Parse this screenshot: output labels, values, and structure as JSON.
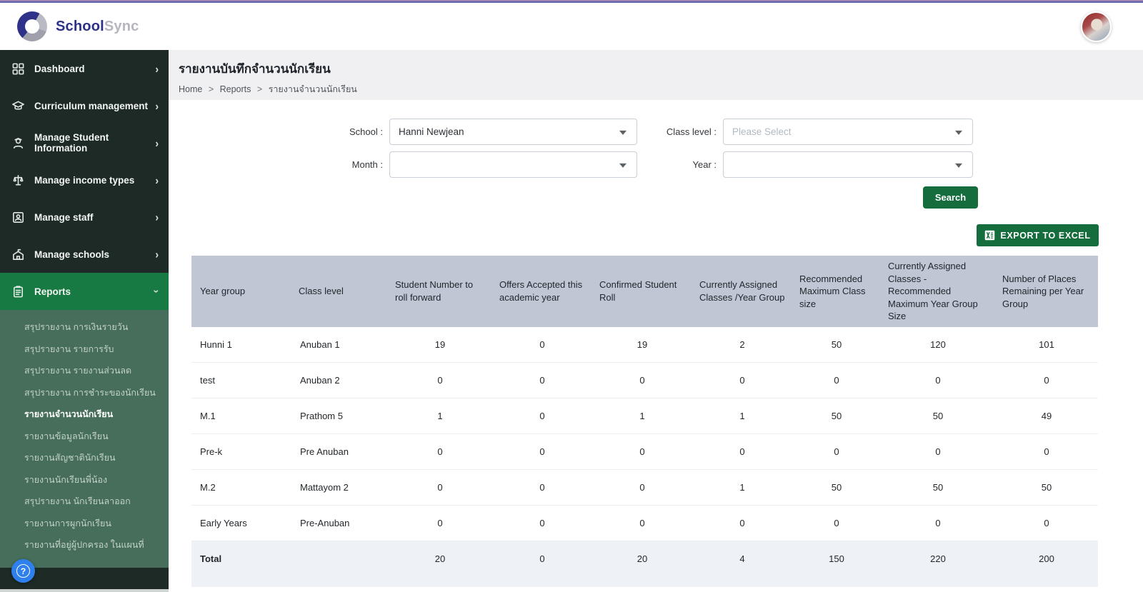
{
  "brand": {
    "name_primary": "School",
    "name_secondary": "Sync"
  },
  "page": {
    "title": "รายงานบันทึกจำนวนนักเรียน",
    "breadcrumb": {
      "parts": [
        "Home",
        "Reports",
        "รายงานจำนวนนักเรียน"
      ],
      "separator": ">"
    }
  },
  "sidebar": {
    "items": [
      {
        "label": "Dashboard"
      },
      {
        "label": "Curriculum management"
      },
      {
        "label": "Manage Student Information"
      },
      {
        "label": "Manage income types"
      },
      {
        "label": "Manage staff"
      },
      {
        "label": "Manage schools"
      },
      {
        "label": "Reports",
        "active": true
      }
    ],
    "reports_submenu": [
      "สรุปรายงาน การเงินรายวัน",
      "สรุปรายงาน รายการรับ",
      "สรุปรายงาน รายงานส่วนลด",
      "สรุปรายงาน การชำระของนักเรียน",
      "รายงานจำนวนนักเรียน",
      "รายงานข้อมูลนักเรียน",
      "รายงานสัญชาตินักเรียน",
      "รายงานนักเรียนพี่น้อง",
      "สรุปรายงาน นักเรียนลาออก",
      "รายงานการผูกนักเรียน",
      "รายงานที่อยู่ผู้ปกครอง ในแผนที่"
    ],
    "active_submenu_index": 4
  },
  "filters": {
    "school": {
      "label": "School :",
      "value": "Hanni Newjean"
    },
    "month": {
      "label": "Month :",
      "value": ""
    },
    "class_level": {
      "label": "Class level :",
      "placeholder": "Please Select"
    },
    "year": {
      "label": "Year :",
      "value": ""
    },
    "search_label": "Search"
  },
  "actions": {
    "export_label": "EXPORT TO EXCEL"
  },
  "table": {
    "columns": [
      "Year group",
      "Class level",
      "Student Number to roll forward",
      "Offers Accepted this academic year",
      "Confirmed Student Roll",
      "Currently Assigned Classes /Year Group",
      "Recommended Maximum Class size",
      "Currently Assigned Classes - Recommended Maximum Year Group Size",
      "Number of Places Remaining per Year Group"
    ],
    "rows": [
      [
        "Hunni 1",
        "Anuban 1",
        "19",
        "0",
        "19",
        "2",
        "50",
        "120",
        "101"
      ],
      [
        "test",
        "Anuban 2",
        "0",
        "0",
        "0",
        "0",
        "0",
        "0",
        "0"
      ],
      [
        "M.1",
        "Prathom 5",
        "1",
        "0",
        "1",
        "1",
        "50",
        "50",
        "49"
      ],
      [
        "Pre-k",
        "Pre Anuban",
        "0",
        "0",
        "0",
        "0",
        "0",
        "0",
        "0"
      ],
      [
        "M.2",
        "Mattayom 2",
        "0",
        "0",
        "0",
        "1",
        "50",
        "50",
        "50"
      ],
      [
        "Early Years",
        "Pre-Anuban",
        "0",
        "0",
        "0",
        "0",
        "0",
        "0",
        "0"
      ]
    ],
    "total_row": [
      "Total",
      "",
      "20",
      "0",
      "20",
      "4",
      "150",
      "220",
      "200"
    ]
  },
  "colors": {
    "sidebar_dark": "#1d2a25",
    "submenu_green": "#466e5a",
    "active_green": "#177a42",
    "button_green": "#156c3c",
    "table_header_bg": "#bfc7d4",
    "brand_blue": "#2d3188",
    "help_blue": "#2f80ed"
  }
}
